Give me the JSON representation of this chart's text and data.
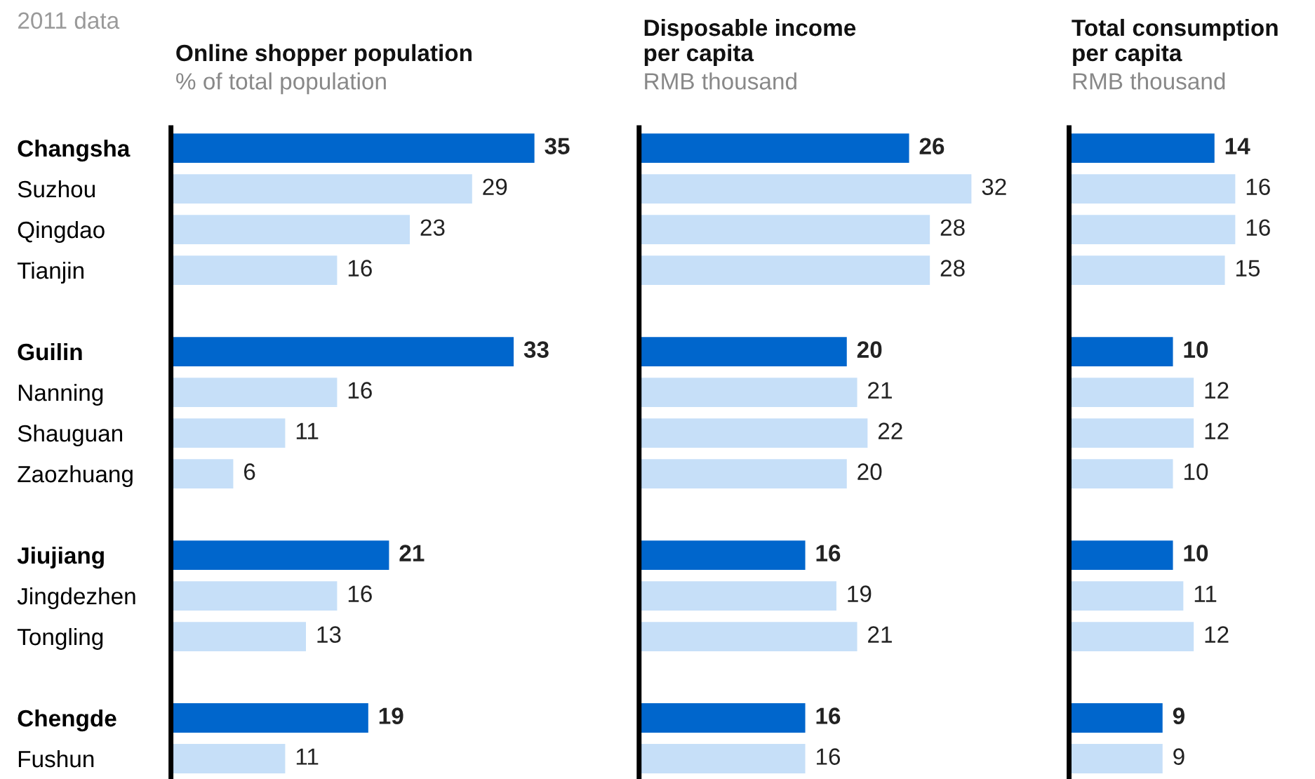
{
  "chart_data": [
    {
      "type": "bar",
      "orientation": "horizontal",
      "title": "Online shopper population",
      "subtitle": "% of total population",
      "annotations": [
        "2011 data"
      ],
      "categories": [
        "Changsha",
        "Suzhou",
        "Qingdao",
        "Tianjin",
        null,
        "Guilin",
        "Nanning",
        "Shauguan",
        "Zaozhuang",
        null,
        "Jiujiang",
        "Jingdezhen",
        "Tongling",
        null,
        "Chengde",
        "Fushun"
      ],
      "values": [
        35,
        29,
        23,
        16,
        null,
        33,
        16,
        11,
        6,
        null,
        21,
        16,
        13,
        null,
        19,
        11
      ],
      "colors": [
        "#0066cc",
        "#c6dff8",
        "#c6dff8",
        "#c6dff8",
        null,
        "#0066cc",
        "#c6dff8",
        "#c6dff8",
        "#c6dff8",
        null,
        "#0066cc",
        "#c6dff8",
        "#c6dff8",
        null,
        "#0066cc",
        "#c6dff8"
      ],
      "data_labels": true,
      "tick_labels": "y",
      "grid": false,
      "legend": false
    },
    {
      "type": "bar",
      "orientation": "horizontal",
      "title": "Disposable income\nper capita",
      "subtitle": "RMB thousand",
      "values": [
        26,
        32,
        28,
        28,
        null,
        20,
        21,
        22,
        20,
        null,
        16,
        19,
        21,
        null,
        16,
        16
      ],
      "colors": [
        "#0066cc",
        "#c6dff8",
        "#c6dff8",
        "#c6dff8",
        null,
        "#0066cc",
        "#c6dff8",
        "#c6dff8",
        "#c6dff8",
        null,
        "#0066cc",
        "#c6dff8",
        "#c6dff8",
        null,
        "#0066cc",
        "#c6dff8"
      ],
      "data_labels": true,
      "tick_labels": false,
      "grid": false,
      "legend": false
    },
    {
      "type": "bar",
      "orientation": "horizontal",
      "title": "Total consumption\nper capita",
      "subtitle": "RMB thousand",
      "values": [
        14,
        16,
        16,
        15,
        null,
        10,
        12,
        12,
        10,
        null,
        10,
        11,
        12,
        null,
        9,
        9
      ],
      "colors": [
        "#0066cc",
        "#c6dff8",
        "#c6dff8",
        "#c6dff8",
        null,
        "#0066cc",
        "#c6dff8",
        "#c6dff8",
        "#c6dff8",
        null,
        "#0066cc",
        "#c6dff8",
        "#c6dff8",
        null,
        "#0066cc",
        "#c6dff8"
      ],
      "data_labels": true,
      "tick_labels": false,
      "grid": false,
      "legend": false
    }
  ]
}
